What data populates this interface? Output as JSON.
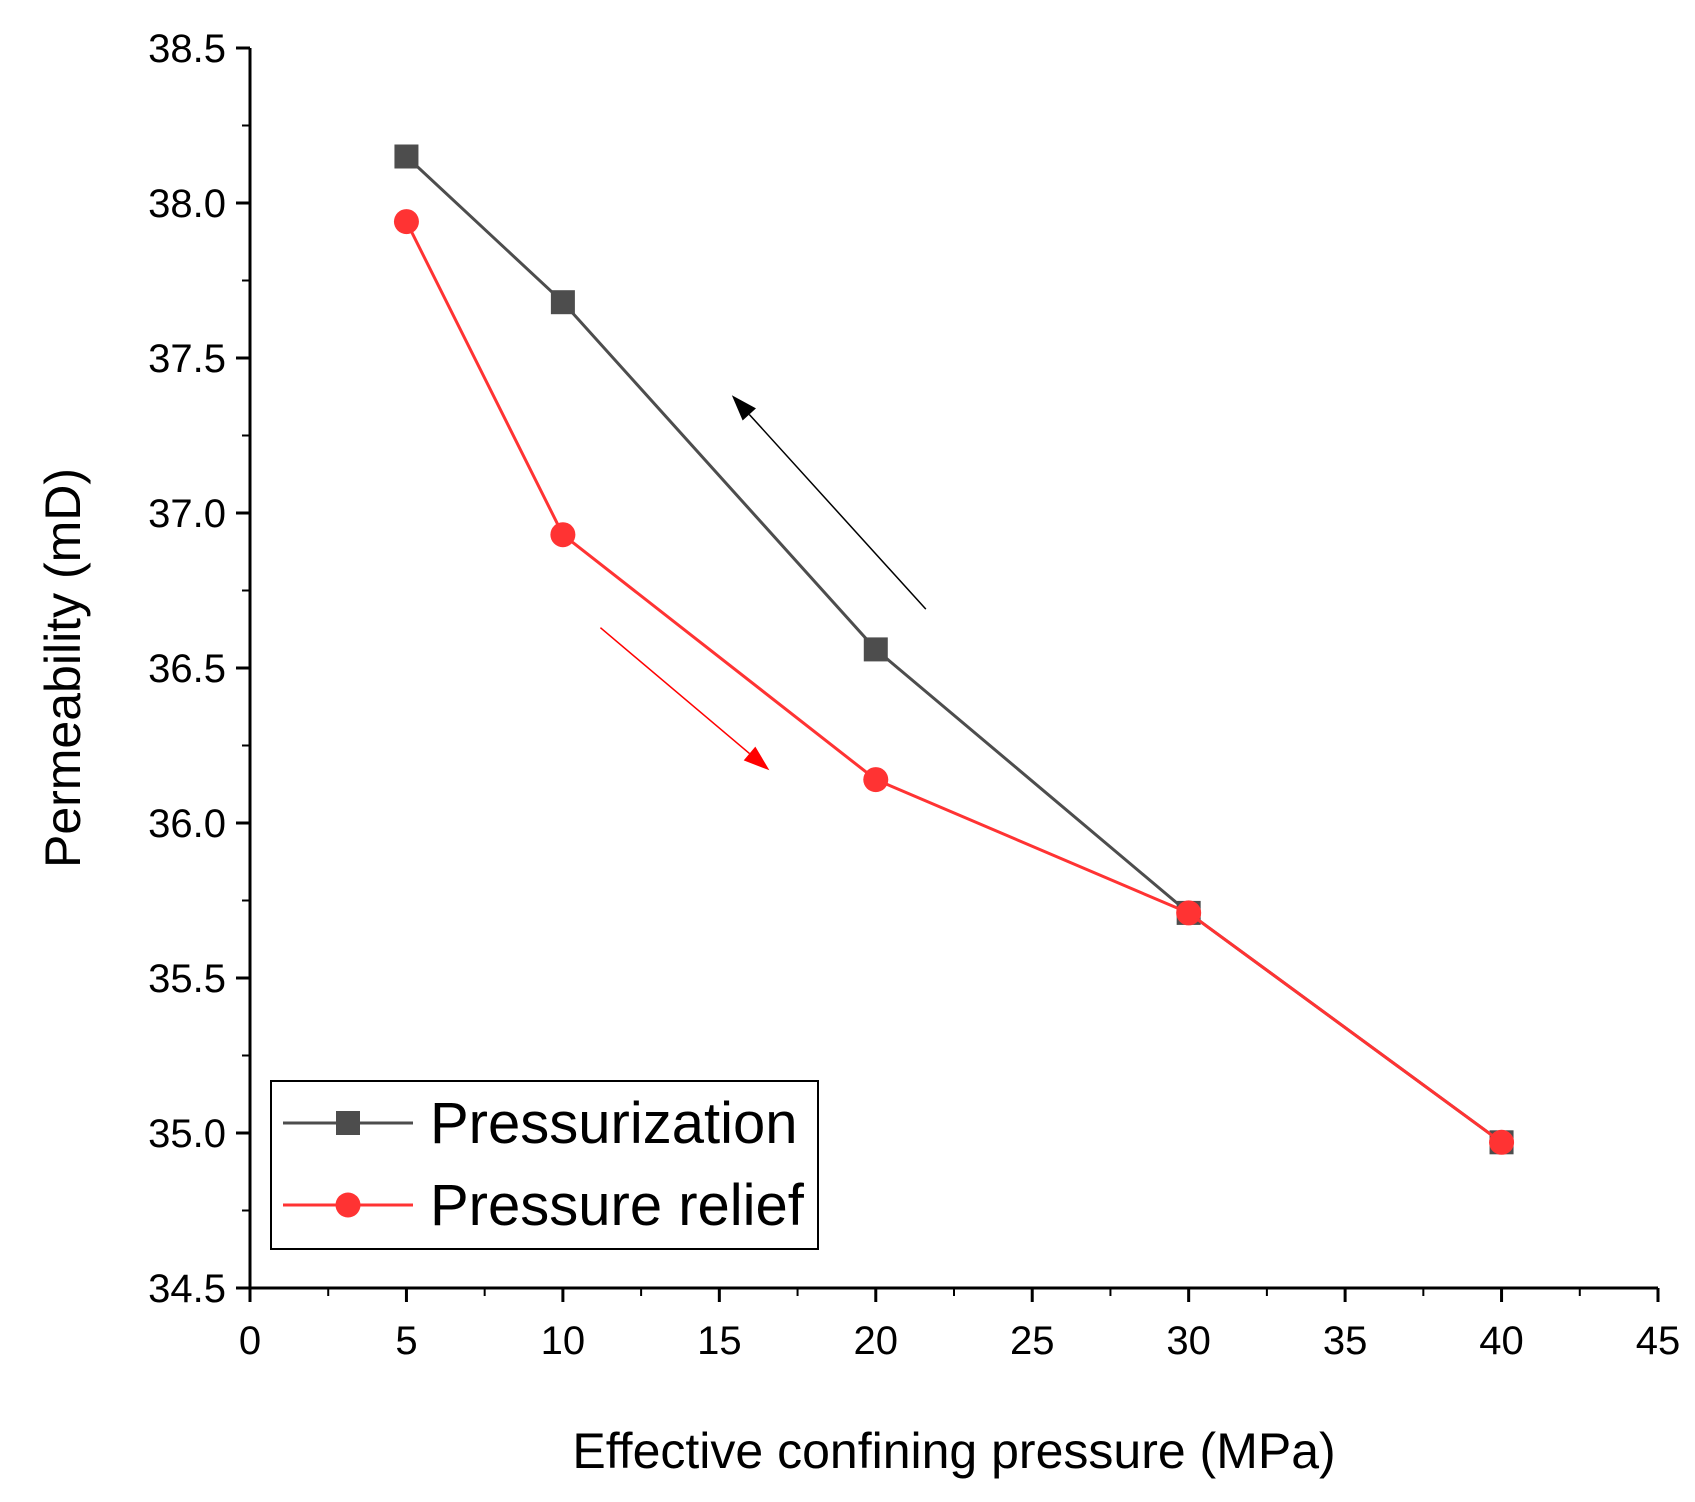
{
  "chart_data": {
    "type": "line",
    "xlabel": "Effective confining pressure (MPa)",
    "ylabel": "Permeability (mD)",
    "xlim": [
      0,
      45
    ],
    "ylim": [
      34.5,
      38.5
    ],
    "x_ticks": [
      0,
      5,
      10,
      15,
      20,
      25,
      30,
      35,
      40,
      45
    ],
    "x_tick_labels": [
      "0",
      "5",
      "10",
      "15",
      "20",
      "25",
      "30",
      "35",
      "40",
      "45"
    ],
    "y_ticks": [
      34.5,
      35.0,
      35.5,
      36.0,
      36.5,
      37.0,
      37.5,
      38.0,
      38.5
    ],
    "y_tick_labels": [
      "34.5",
      "35.0",
      "35.5",
      "36.0",
      "36.5",
      "37.0",
      "37.5",
      "38.0",
      "38.5"
    ],
    "grid": false,
    "legend_position": "bottom-left",
    "series": [
      {
        "name": "Pressurization",
        "color": "#4d4d4d",
        "marker": "square",
        "x": [
          5,
          10,
          20,
          30,
          40
        ],
        "y": [
          38.15,
          37.68,
          36.56,
          35.71,
          34.97
        ]
      },
      {
        "name": "Pressure relief",
        "color": "#ff3333",
        "marker": "circle",
        "x": [
          5,
          10,
          20,
          30,
          40
        ],
        "y": [
          37.94,
          36.93,
          36.14,
          35.71,
          34.97
        ]
      }
    ],
    "annotations": [
      {
        "type": "arrow",
        "color": "#000000",
        "from": [
          21.6,
          36.69
        ],
        "to": [
          15.4,
          37.38
        ]
      },
      {
        "type": "arrow",
        "color": "#ff0000",
        "from": [
          11.2,
          36.63
        ],
        "to": [
          16.6,
          36.17
        ]
      }
    ]
  }
}
